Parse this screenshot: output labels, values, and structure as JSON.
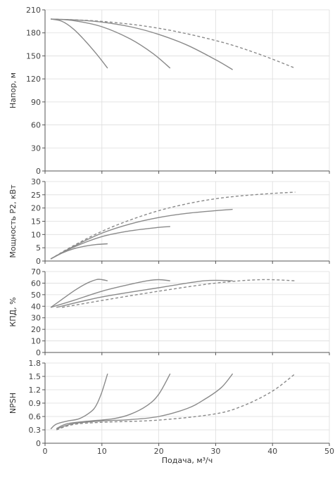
{
  "chart_data": {
    "type": "line",
    "x_range": [
      0,
      50
    ],
    "x_ticks": [
      "0",
      "10",
      "20",
      "30",
      "40",
      "50"
    ],
    "xlabel": "Подача, м³/ч",
    "grid": true,
    "panels": [
      {
        "id": "head",
        "ylabel": "Напор, м",
        "ylim": [
          0,
          210
        ],
        "y_ticks": [
          "0",
          "30",
          "60",
          "90",
          "120",
          "150",
          "180",
          "210"
        ],
        "series": [
          {
            "dashed": false,
            "x": [
              1,
              3,
              5,
              7,
              9,
              11
            ],
            "y": [
              198,
              195,
              185,
              170,
              153,
              134
            ]
          },
          {
            "dashed": false,
            "x": [
              1,
              5,
              10,
              15,
              19,
              22
            ],
            "y": [
              198,
              196,
              188,
              172,
              153,
              134
            ]
          },
          {
            "dashed": false,
            "x": [
              1,
              5,
              10,
              15,
              20,
              25,
              30,
              33
            ],
            "y": [
              198,
              197,
              194,
              188,
              178,
              164,
              145,
              132
            ]
          },
          {
            "dashed": true,
            "x": [
              1,
              10,
              20,
              30,
              37,
              44
            ],
            "y": [
              198,
              195,
              186,
              170,
              154,
              134
            ]
          }
        ]
      },
      {
        "id": "power",
        "ylabel": "Мощность P2, кВт",
        "ylim": [
          0,
          30
        ],
        "y_ticks": [
          "0",
          "5",
          "10",
          "15",
          "20",
          "25",
          "30"
        ],
        "series": [
          {
            "dashed": false,
            "x": [
              1,
              3,
              5,
              7,
              9,
              11
            ],
            "y": [
              0.8,
              3.0,
              4.6,
              5.6,
              6.2,
              6.5
            ]
          },
          {
            "dashed": false,
            "x": [
              1,
              5,
              10,
              15,
              20,
              22
            ],
            "y": [
              0.8,
              5.2,
              9.2,
              11.4,
              12.7,
              13.0
            ]
          },
          {
            "dashed": false,
            "x": [
              1,
              5,
              10,
              15,
              20,
              25,
              30,
              33
            ],
            "y": [
              0.8,
              5.5,
              10.5,
              14.0,
              16.4,
              18.0,
              19.0,
              19.5
            ]
          },
          {
            "dashed": true,
            "x": [
              1,
              5,
              10,
              15,
              20,
              25,
              30,
              35,
              40,
              44
            ],
            "y": [
              0.8,
              5.8,
              11.2,
              15.5,
              19.0,
              21.6,
              23.5,
              24.7,
              25.5,
              26.0
            ]
          }
        ]
      },
      {
        "id": "efficiency",
        "ylabel": "КПД, %",
        "ylim": [
          0,
          70
        ],
        "y_ticks": [
          "0",
          "10",
          "20",
          "30",
          "40",
          "50",
          "60",
          "70"
        ],
        "series": [
          {
            "dashed": false,
            "x": [
              1,
              3,
              5,
              7,
              9,
              10,
              11
            ],
            "y": [
              39,
              46,
              53,
              59,
              63,
              63,
              62
            ]
          },
          {
            "dashed": false,
            "x": [
              1,
              5,
              10,
              15,
              18,
              20,
              22
            ],
            "y": [
              39,
              45,
              53,
              59,
              62,
              63,
              62
            ]
          },
          {
            "dashed": false,
            "x": [
              2,
              10,
              20,
              28,
              33
            ],
            "y": [
              39,
              48,
              56,
              62,
              62
            ]
          },
          {
            "dashed": true,
            "x": [
              3,
              10,
              20,
              30,
              38,
              44
            ],
            "y": [
              39,
              45,
              53,
              60,
              63,
              62
            ]
          }
        ]
      },
      {
        "id": "npsh",
        "ylabel": "NPSH",
        "ylim": [
          0,
          1.8
        ],
        "y_ticks": [
          "0",
          "0.3",
          "0.6",
          "0.9",
          "1.2",
          "1.5",
          "1.8"
        ],
        "series": [
          {
            "dashed": false,
            "x": [
              1,
              2,
              4,
              6,
              8,
              9,
              10,
              11
            ],
            "y": [
              0.32,
              0.43,
              0.5,
              0.55,
              0.7,
              0.85,
              1.15,
              1.56
            ]
          },
          {
            "dashed": false,
            "x": [
              2,
              4,
              8,
              12,
              15,
              18,
              20,
              22
            ],
            "y": [
              0.33,
              0.44,
              0.5,
              0.55,
              0.65,
              0.85,
              1.1,
              1.56
            ]
          },
          {
            "dashed": false,
            "x": [
              2,
              5,
              10,
              15,
              20,
              25,
              28,
              31,
              33
            ],
            "y": [
              0.32,
              0.44,
              0.5,
              0.53,
              0.6,
              0.78,
              0.98,
              1.25,
              1.56
            ]
          },
          {
            "dashed": true,
            "x": [
              2,
              5,
              10,
              20,
              30,
              35,
              40,
              44
            ],
            "y": [
              0.3,
              0.42,
              0.47,
              0.52,
              0.66,
              0.85,
              1.17,
              1.56
            ]
          }
        ]
      }
    ]
  }
}
